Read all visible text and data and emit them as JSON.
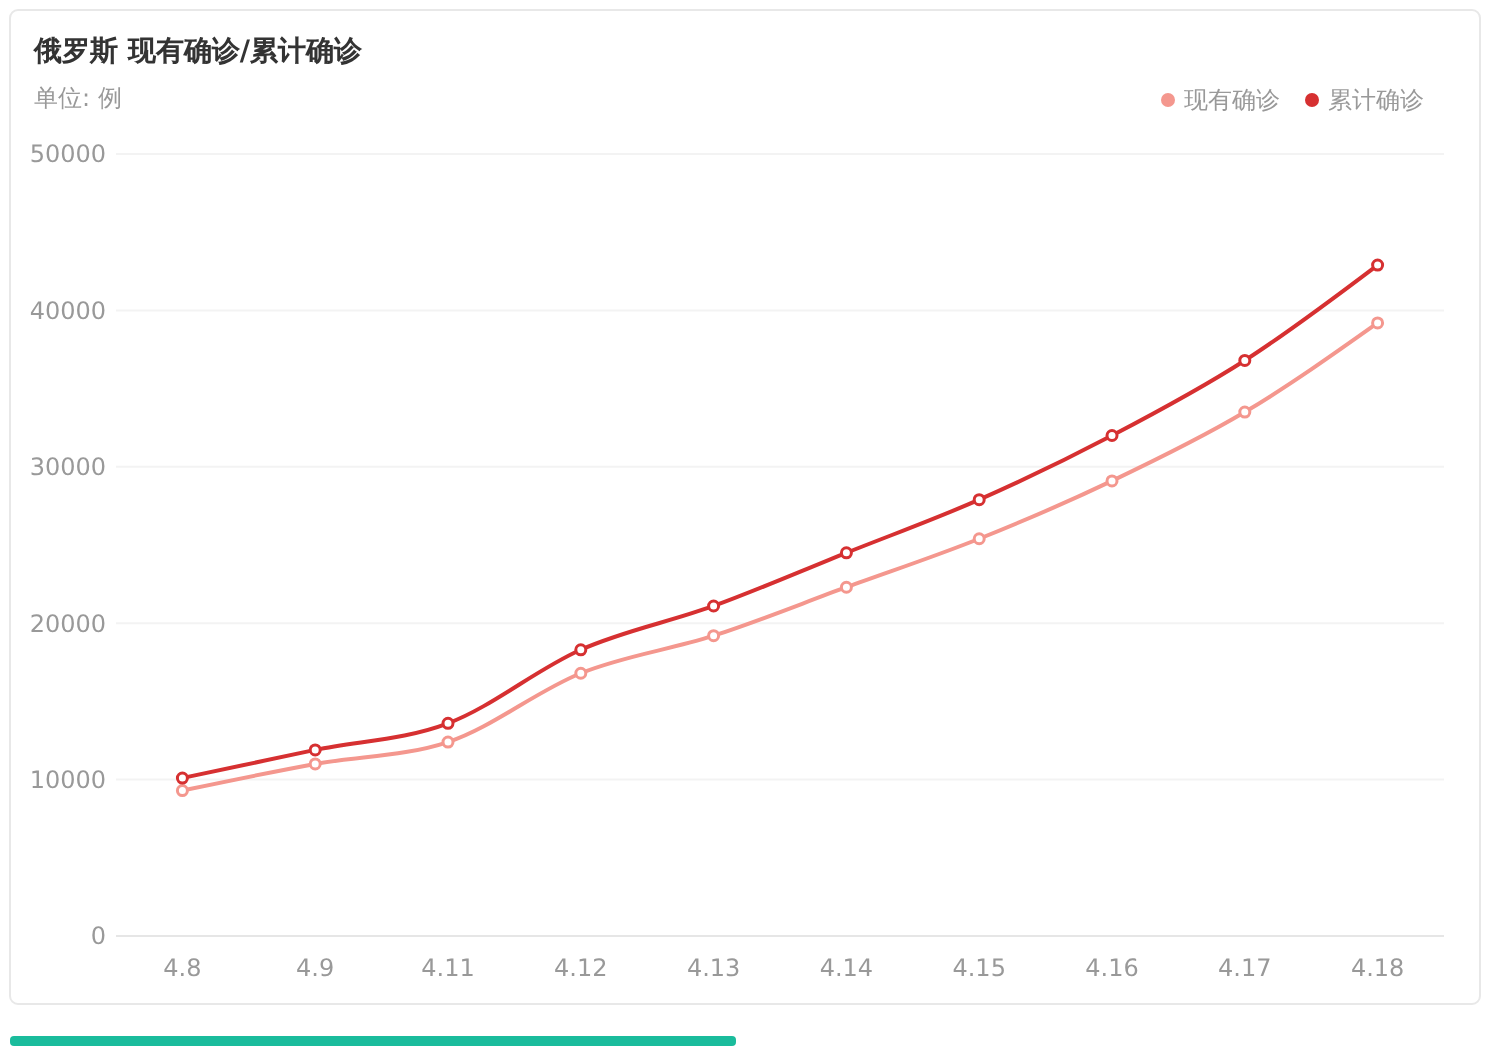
{
  "chart_data": {
    "type": "line",
    "title": "俄罗斯 现有确诊/累计确诊",
    "subtitle": "单位: 例",
    "categories": [
      "4.8",
      "4.9",
      "4.11",
      "4.12",
      "4.13",
      "4.14",
      "4.15",
      "4.16",
      "4.17",
      "4.18"
    ],
    "series": [
      {
        "name": "现有确诊",
        "color": "#f4978e",
        "values": [
          9300,
          11000,
          12400,
          16800,
          19200,
          22300,
          25400,
          29100,
          33500,
          39200
        ]
      },
      {
        "name": "累计确诊",
        "color": "#d63031",
        "values": [
          10100,
          11900,
          13600,
          18300,
          21100,
          24500,
          27900,
          32000,
          36800,
          42900
        ]
      }
    ],
    "ylim": [
      0,
      50000
    ],
    "yticks": [
      0,
      10000,
      20000,
      30000,
      40000,
      50000
    ],
    "grid": "y",
    "legend": "top right",
    "marker": "circle",
    "line_style": "solid"
  }
}
